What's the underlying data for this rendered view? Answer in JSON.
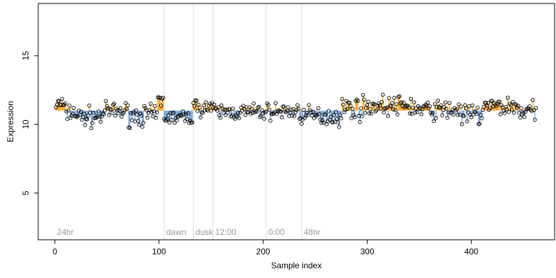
{
  "chart_data": {
    "type": "scatter",
    "title": "",
    "xlabel": "Sample index",
    "ylabel": "Expression",
    "xlim": [
      -16,
      480
    ],
    "ylim": [
      1.6,
      18.8
    ],
    "x_ticks": [
      0,
      100,
      200,
      300,
      400
    ],
    "y_ticks": [
      5,
      10,
      15
    ],
    "baseline": 11.0,
    "grid": false,
    "colors": {
      "above": "#f5a623",
      "below": "#7aa6dc",
      "points": "#000000",
      "phase_lines": "#dddddd",
      "phase_text": "#9a9a9a"
    },
    "phase_markers": [
      {
        "label": "24hr",
        "x": 0,
        "line": false
      },
      {
        "label": "dawn",
        "x": 105,
        "line": true
      },
      {
        "label": "dusk",
        "x": 133,
        "line": true
      },
      {
        "label": "12:00",
        "x": 152,
        "line": true
      },
      {
        "label": "0:00",
        "x": 203,
        "line": true
      },
      {
        "label": "48hr",
        "x": 237,
        "line": true
      }
    ],
    "segments": [
      {
        "x_start": 1,
        "x_end": 8,
        "mean": 11.45,
        "jitter": 0.35
      },
      {
        "x_start": 9,
        "x_end": 20,
        "mean": 10.9,
        "jitter": 0.35
      },
      {
        "x_start": 21,
        "x_end": 45,
        "mean": 10.55,
        "jitter": 0.35
      },
      {
        "x_start": 46,
        "x_end": 70,
        "mean": 10.95,
        "jitter": 0.3
      },
      {
        "x_start": 71,
        "x_end": 98,
        "mean": 10.65,
        "jitter": 0.35
      },
      {
        "x_start": 99,
        "x_end": 104,
        "mean": 11.7,
        "jitter": 0.35
      },
      {
        "x_start": 105,
        "x_end": 132,
        "mean": 10.5,
        "jitter": 0.25
      },
      {
        "x_start": 133,
        "x_end": 151,
        "mean": 11.25,
        "jitter": 0.3
      },
      {
        "x_start": 152,
        "x_end": 202,
        "mean": 10.9,
        "jitter": 0.3
      },
      {
        "x_start": 203,
        "x_end": 236,
        "mean": 10.95,
        "jitter": 0.3
      },
      {
        "x_start": 237,
        "x_end": 275,
        "mean": 10.6,
        "jitter": 0.35
      },
      {
        "x_start": 276,
        "x_end": 300,
        "mean": 11.2,
        "jitter": 0.4
      },
      {
        "x_start": 301,
        "x_end": 345,
        "mean": 11.35,
        "jitter": 0.35
      },
      {
        "x_start": 346,
        "x_end": 390,
        "mean": 11.05,
        "jitter": 0.35
      },
      {
        "x_start": 391,
        "x_end": 410,
        "mean": 10.65,
        "jitter": 0.4
      },
      {
        "x_start": 411,
        "x_end": 445,
        "mean": 11.3,
        "jitter": 0.35
      },
      {
        "x_start": 446,
        "x_end": 462,
        "mean": 10.95,
        "jitter": 0.35
      }
    ]
  }
}
